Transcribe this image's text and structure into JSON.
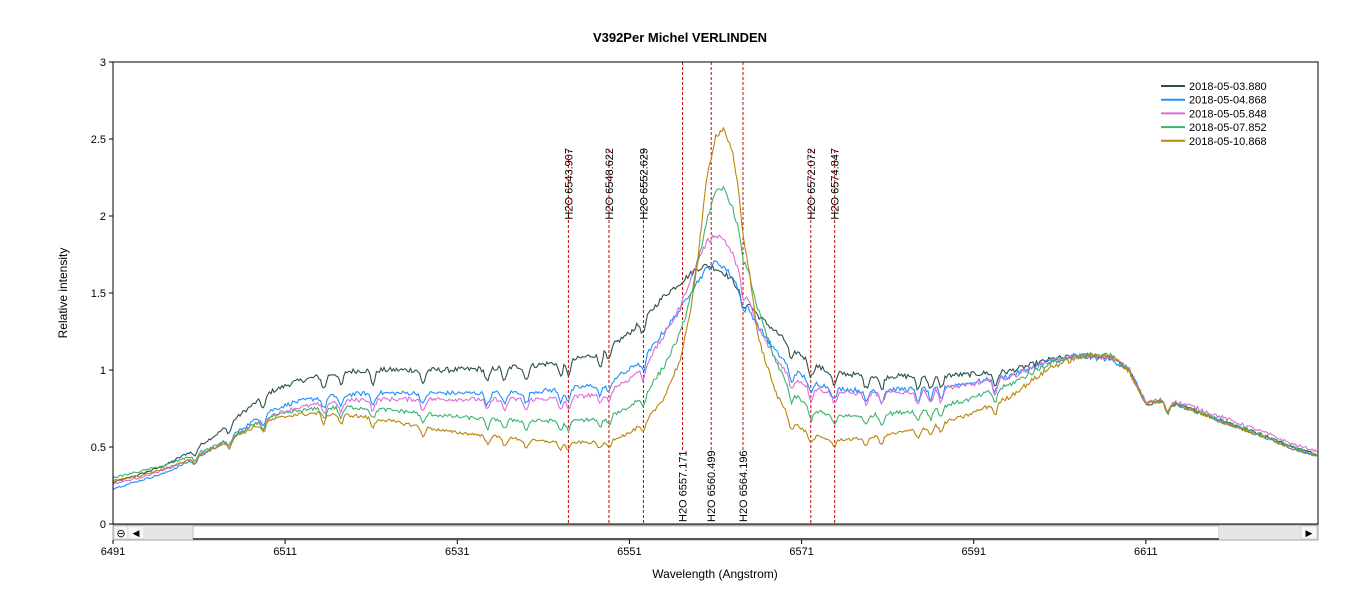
{
  "chart_data": {
    "type": "line",
    "title": "V392Per   Michel VERLINDEN",
    "xlabel": "Wavelength (Angstrom)",
    "ylabel": "Relative intensity",
    "xlim": [
      6491,
      6631
    ],
    "ylim": [
      0,
      3
    ],
    "x_ticks": [
      6491,
      6511,
      6531,
      6551,
      6571,
      6591,
      6611
    ],
    "y_ticks": [
      0,
      0.5,
      1,
      1.5,
      2,
      2.5,
      3
    ],
    "y_tick_labels": [
      "0",
      "0.5",
      "1",
      "1.5",
      "2",
      "2.5",
      "3"
    ],
    "legend_position": "top-right",
    "series": [
      {
        "name": "2018-05-03.880",
        "color": "#2f4f4f",
        "x": [
          6491,
          6494,
          6497,
          6500,
          6503,
          6506,
          6509,
          6512,
          6515,
          6518,
          6521,
          6525,
          6530,
          6535,
          6540,
          6544,
          6547,
          6549,
          6551,
          6553,
          6555,
          6557,
          6558,
          6559,
          6560,
          6561,
          6562,
          6563,
          6564,
          6565,
          6566,
          6568,
          6570,
          6572,
          6574,
          6577,
          6580,
          6585,
          6590,
          6595,
          6600,
          6603,
          6605,
          6607,
          6609,
          6610,
          6611,
          6613,
          6616,
          6620,
          6625,
          6628,
          6631
        ],
        "values": [
          0.27,
          0.32,
          0.38,
          0.47,
          0.58,
          0.72,
          0.85,
          0.92,
          0.96,
          0.99,
          1.0,
          1.0,
          1.0,
          1.01,
          1.03,
          1.06,
          1.1,
          1.16,
          1.24,
          1.35,
          1.48,
          1.57,
          1.62,
          1.66,
          1.68,
          1.66,
          1.63,
          1.58,
          1.5,
          1.42,
          1.35,
          1.25,
          1.14,
          1.05,
          0.99,
          0.97,
          0.96,
          0.96,
          0.97,
          0.99,
          1.07,
          1.09,
          1.09,
          1.08,
          1.0,
          0.9,
          0.78,
          0.8,
          0.75,
          0.67,
          0.57,
          0.5,
          0.45
        ]
      },
      {
        "name": "2018-05-04.868",
        "color": "#1e90ff",
        "x": [
          6491,
          6494,
          6497,
          6500,
          6503,
          6506,
          6509,
          6512,
          6515,
          6518,
          6521,
          6525,
          6530,
          6535,
          6540,
          6544,
          6547,
          6549,
          6551,
          6553,
          6555,
          6557,
          6558,
          6559,
          6560,
          6561,
          6562,
          6563,
          6564,
          6565,
          6566,
          6568,
          6570,
          6572,
          6574,
          6577,
          6580,
          6585,
          6590,
          6595,
          6600,
          6603,
          6605,
          6607,
          6609,
          6610,
          6611,
          6613,
          6616,
          6620,
          6625,
          6628,
          6631
        ],
        "values": [
          0.23,
          0.28,
          0.33,
          0.41,
          0.5,
          0.62,
          0.73,
          0.79,
          0.82,
          0.84,
          0.85,
          0.85,
          0.85,
          0.85,
          0.86,
          0.88,
          0.9,
          0.94,
          1.0,
          1.1,
          1.25,
          1.4,
          1.5,
          1.58,
          1.66,
          1.7,
          1.67,
          1.6,
          1.5,
          1.38,
          1.28,
          1.12,
          1.0,
          0.93,
          0.89,
          0.87,
          0.87,
          0.88,
          0.91,
          0.96,
          1.06,
          1.09,
          1.08,
          1.07,
          1.0,
          0.9,
          0.78,
          0.8,
          0.75,
          0.66,
          0.56,
          0.49,
          0.44
        ]
      },
      {
        "name": "2018-05-05.848",
        "color": "#da70d6",
        "x": [
          6491,
          6494,
          6497,
          6500,
          6503,
          6506,
          6509,
          6512,
          6515,
          6518,
          6521,
          6525,
          6530,
          6535,
          6540,
          6544,
          6547,
          6549,
          6551,
          6553,
          6555,
          6557,
          6558,
          6559,
          6560,
          6561,
          6562,
          6563,
          6564,
          6565,
          6566,
          6568,
          6570,
          6572,
          6574,
          6577,
          6580,
          6585,
          6590,
          6595,
          6600,
          6603,
          6605,
          6607,
          6609,
          6610,
          6611,
          6613,
          6616,
          6620,
          6625,
          6628,
          6631
        ],
        "values": [
          0.26,
          0.3,
          0.35,
          0.42,
          0.5,
          0.6,
          0.7,
          0.75,
          0.78,
          0.8,
          0.81,
          0.81,
          0.81,
          0.81,
          0.81,
          0.82,
          0.84,
          0.88,
          0.94,
          1.05,
          1.22,
          1.42,
          1.58,
          1.72,
          1.83,
          1.88,
          1.85,
          1.75,
          1.6,
          1.42,
          1.27,
          1.07,
          0.95,
          0.89,
          0.86,
          0.85,
          0.85,
          0.86,
          0.9,
          0.95,
          1.06,
          1.09,
          1.09,
          1.08,
          1.01,
          0.9,
          0.79,
          0.81,
          0.77,
          0.69,
          0.59,
          0.52,
          0.47
        ]
      },
      {
        "name": "2018-05-07.852",
        "color": "#3cb371",
        "x": [
          6491,
          6494,
          6497,
          6500,
          6503,
          6506,
          6509,
          6512,
          6515,
          6518,
          6521,
          6525,
          6530,
          6535,
          6540,
          6544,
          6547,
          6549,
          6551,
          6553,
          6555,
          6557,
          6558,
          6559,
          6560,
          6561,
          6562,
          6563,
          6564,
          6565,
          6566,
          6568,
          6570,
          6572,
          6574,
          6577,
          6580,
          6585,
          6590,
          6595,
          6600,
          6603,
          6605,
          6607,
          6609,
          6610,
          6611,
          6613,
          6616,
          6620,
          6625,
          6628,
          6631
        ],
        "values": [
          0.3,
          0.34,
          0.38,
          0.44,
          0.51,
          0.6,
          0.69,
          0.73,
          0.75,
          0.76,
          0.75,
          0.73,
          0.7,
          0.68,
          0.67,
          0.67,
          0.68,
          0.71,
          0.76,
          0.86,
          1.02,
          1.25,
          1.45,
          1.7,
          1.98,
          2.15,
          2.18,
          2.05,
          1.85,
          1.6,
          1.38,
          1.05,
          0.85,
          0.75,
          0.71,
          0.7,
          0.71,
          0.74,
          0.8,
          0.9,
          1.05,
          1.09,
          1.1,
          1.09,
          1.0,
          0.89,
          0.78,
          0.8,
          0.75,
          0.67,
          0.57,
          0.5,
          0.45
        ]
      },
      {
        "name": "2018-05-10.868",
        "color": "#b8860b",
        "x": [
          6491,
          6494,
          6497,
          6500,
          6503,
          6506,
          6509,
          6512,
          6515,
          6518,
          6521,
          6525,
          6530,
          6535,
          6540,
          6544,
          6547,
          6549,
          6551,
          6553,
          6555,
          6557,
          6558,
          6559,
          6560,
          6561,
          6562,
          6563,
          6564,
          6565,
          6566,
          6568,
          6570,
          6572,
          6574,
          6577,
          6580,
          6585,
          6590,
          6595,
          6600,
          6603,
          6605,
          6607,
          6609,
          6610,
          6611,
          6613,
          6616,
          6620,
          6625,
          6628,
          6631
        ],
        "values": [
          0.28,
          0.31,
          0.36,
          0.42,
          0.5,
          0.59,
          0.67,
          0.71,
          0.72,
          0.71,
          0.69,
          0.65,
          0.6,
          0.57,
          0.54,
          0.53,
          0.53,
          0.55,
          0.59,
          0.67,
          0.82,
          1.08,
          1.35,
          1.75,
          2.25,
          2.52,
          2.57,
          2.4,
          2.05,
          1.6,
          1.2,
          0.85,
          0.66,
          0.58,
          0.55,
          0.55,
          0.57,
          0.62,
          0.7,
          0.82,
          1.02,
          1.08,
          1.1,
          1.09,
          1.0,
          0.89,
          0.78,
          0.8,
          0.75,
          0.66,
          0.56,
          0.49,
          0.44
        ]
      }
    ],
    "annotations": [
      {
        "label": "H2O 6543.907",
        "x": 6543.907,
        "side": "top"
      },
      {
        "label": "H2O 6548.622",
        "x": 6548.622,
        "side": "top"
      },
      {
        "label": "H2O 6552.629",
        "x": 6552.629,
        "side": "top"
      },
      {
        "label": "H2O 6572.072",
        "x": 6572.072,
        "side": "top"
      },
      {
        "label": "H2O 6574.847",
        "x": 6574.847,
        "side": "top"
      },
      {
        "label": "H2O 6557.171",
        "x": 6557.171,
        "side": "bottom"
      },
      {
        "label": "H2O 6560.499",
        "x": 6560.499,
        "side": "bottom"
      },
      {
        "label": "H2O 6564.196",
        "x": 6564.196,
        "side": "bottom"
      }
    ],
    "absorption_lines": [
      6500.5,
      6504.5,
      6508.5,
      6515.5,
      6517.5,
      6521.2,
      6527.0,
      6534.5,
      6536.5,
      6539.0,
      6543.0,
      6543.9,
      6547.6,
      6548.6,
      6552.6,
      6564.2,
      6569.8,
      6572.1,
      6574.8,
      6578.5,
      6580.3,
      6584.5,
      6586.0,
      6587.2,
      6593.5,
      6613.5
    ]
  },
  "scrollbar": {
    "left_arrow": "◀",
    "right_arrow": "▶",
    "zoom_icon": "⊖"
  }
}
